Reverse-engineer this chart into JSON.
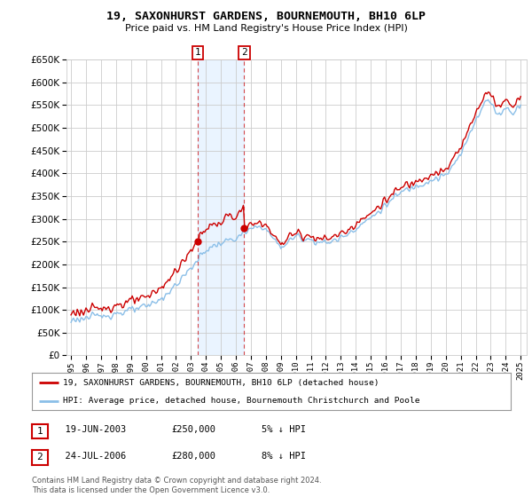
{
  "title": "19, SAXONHURST GARDENS, BOURNEMOUTH, BH10 6LP",
  "subtitle": "Price paid vs. HM Land Registry's House Price Index (HPI)",
  "legend_line1": "19, SAXONHURST GARDENS, BOURNEMOUTH, BH10 6LP (detached house)",
  "legend_line2": "HPI: Average price, detached house, Bournemouth Christchurch and Poole",
  "footer1": "Contains HM Land Registry data © Crown copyright and database right 2024.",
  "footer2": "This data is licensed under the Open Government Licence v3.0.",
  "table_row1": [
    "1",
    "19-JUN-2003",
    "£250,000",
    "5% ↓ HPI"
  ],
  "table_row2": [
    "2",
    "24-JUL-2006",
    "£280,000",
    "8% ↓ HPI"
  ],
  "hpi_color": "#8bbfe8",
  "price_color": "#cc0000",
  "background_color": "#ffffff",
  "grid_color": "#cccccc",
  "highlight_color": "#ddeeff",
  "highlight_alpha": 0.6,
  "ylim": [
    0,
    650000
  ],
  "yticks": [
    0,
    50000,
    100000,
    150000,
    200000,
    250000,
    300000,
    350000,
    400000,
    450000,
    500000,
    550000,
    600000,
    650000
  ],
  "sale1_year": 2003.47,
  "sale1_price": 250000,
  "sale2_year": 2006.56,
  "sale2_price": 280000,
  "sale1_label": "1",
  "sale2_label": "2"
}
